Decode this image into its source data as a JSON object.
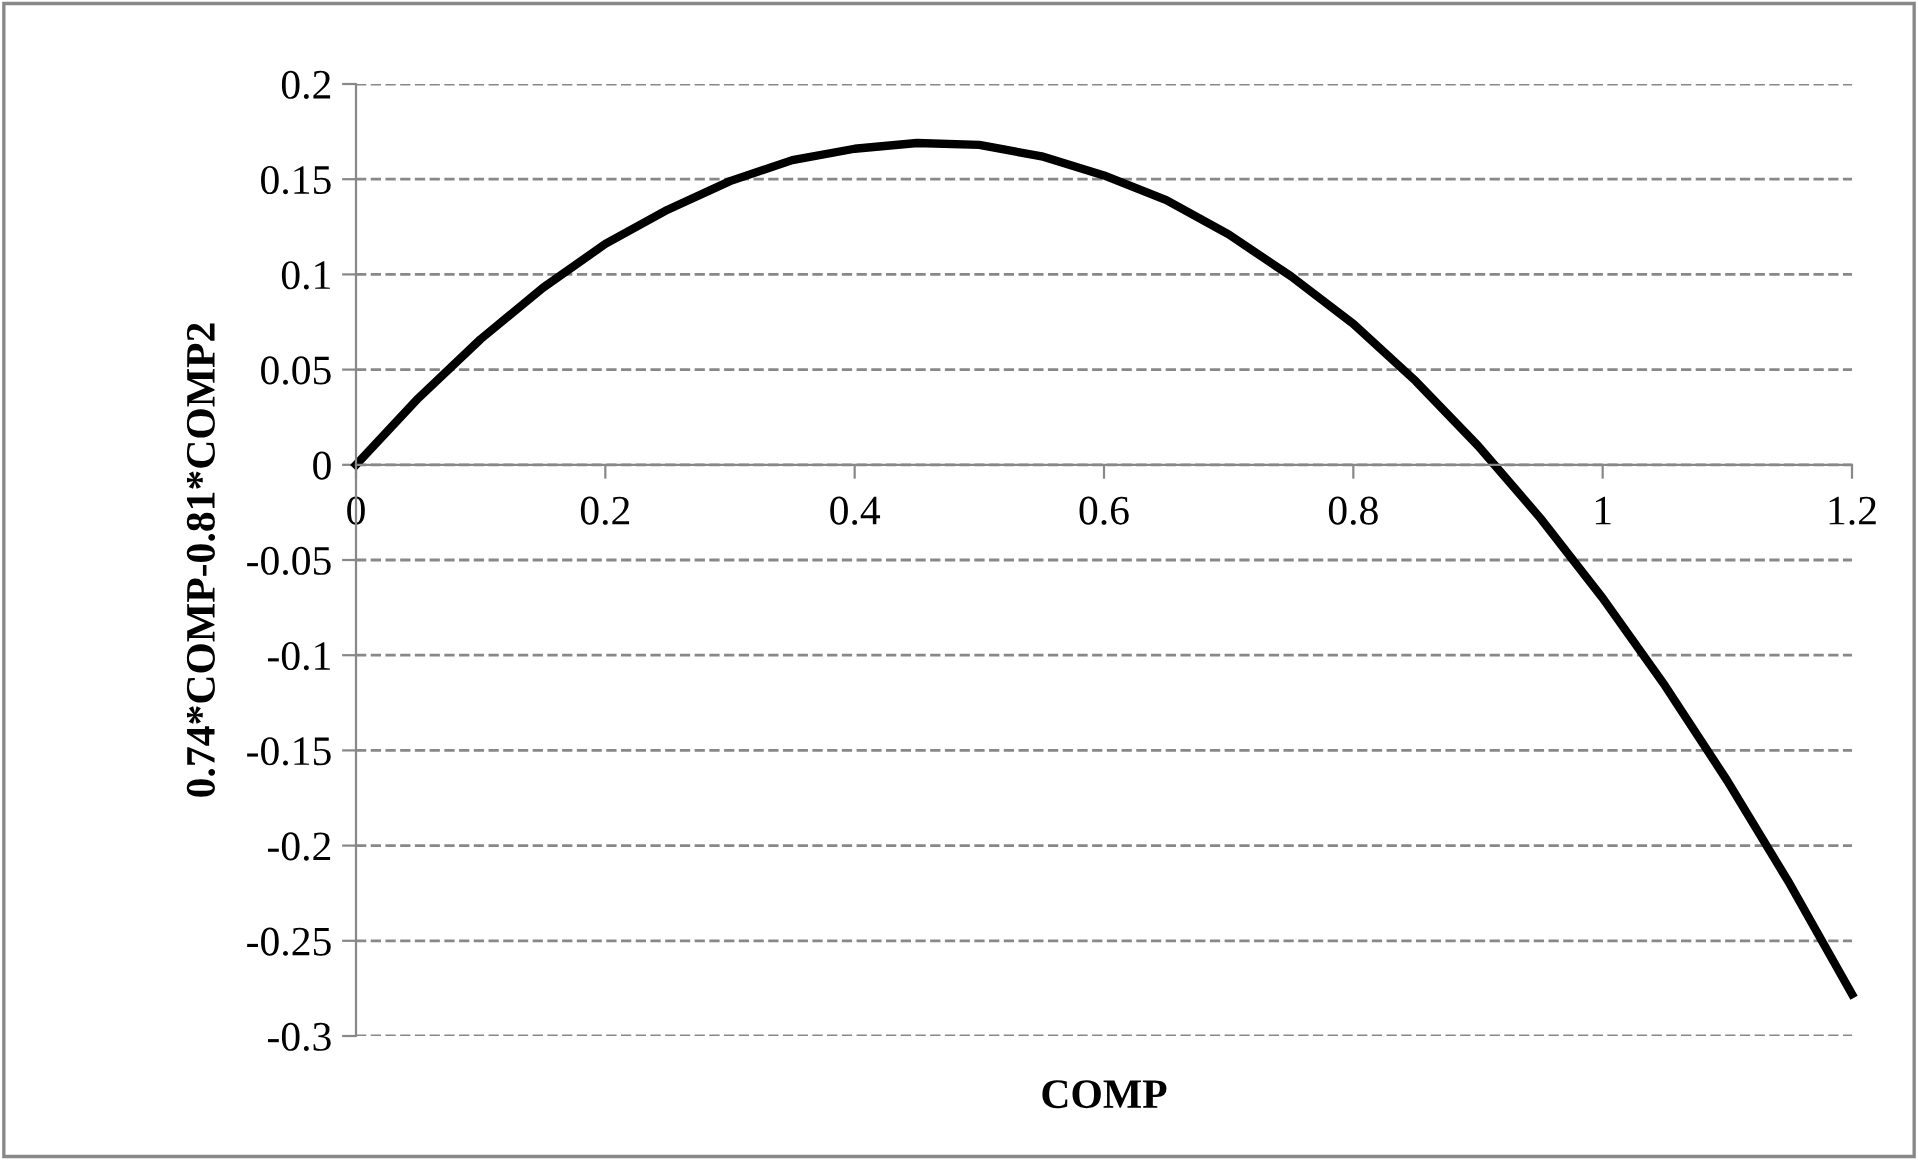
{
  "chart_data": {
    "type": "line",
    "xlabel": "COMP",
    "ylabel": "0.74*COMP-0.81*COMP2",
    "x": [
      0,
      0.05,
      0.1,
      0.15,
      0.2,
      0.25,
      0.3,
      0.35,
      0.4,
      0.45,
      0.5,
      0.55,
      0.6,
      0.65,
      0.7,
      0.75,
      0.8,
      0.85,
      0.9,
      0.95,
      1.0,
      1.05,
      1.1,
      1.15,
      1.2
    ],
    "series": [
      {
        "color": "#000000",
        "values": [
          0,
          0.035,
          0.066,
          0.093,
          0.116,
          0.134,
          0.149,
          0.16,
          0.166,
          0.169,
          0.168,
          0.162,
          0.152,
          0.139,
          0.121,
          0.099,
          0.074,
          0.044,
          0.01,
          -0.028,
          -0.07,
          -0.116,
          -0.166,
          -0.22,
          -0.278
        ]
      }
    ],
    "xlim": [
      0,
      1.2
    ],
    "xticks": [
      0,
      0.2,
      0.4,
      0.6,
      0.8,
      1,
      1.2
    ],
    "ylim": [
      -0.3,
      0.2
    ],
    "yticks": [
      -0.3,
      -0.25,
      -0.2,
      -0.15,
      -0.1,
      -0.05,
      0,
      0.05,
      0.1,
      0.15,
      0.2
    ],
    "grid": "y",
    "marker": "none",
    "line_style": "solid",
    "legend": false
  }
}
